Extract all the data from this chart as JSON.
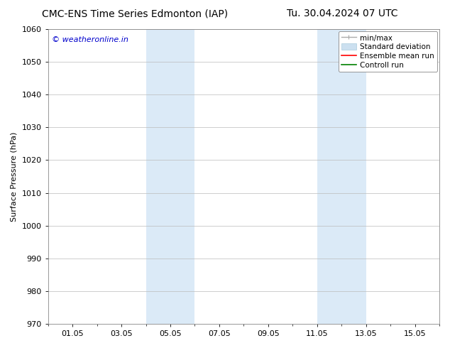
{
  "title_left": "CMC-ENS Time Series Edmonton (IAP)",
  "title_right": "Tu. 30.04.2024 07 UTC",
  "ylabel": "Surface Pressure (hPa)",
  "ylim": [
    970,
    1060
  ],
  "yticks": [
    970,
    980,
    990,
    1000,
    1010,
    1020,
    1030,
    1040,
    1050,
    1060
  ],
  "xtick_labels": [
    "01.05",
    "03.05",
    "05.05",
    "07.05",
    "09.05",
    "11.05",
    "13.05",
    "15.05"
  ],
  "xtick_positions": [
    1,
    3,
    5,
    7,
    9,
    11,
    13,
    15
  ],
  "xlim": [
    0,
    16
  ],
  "shaded_regions": [
    {
      "x_start": 4,
      "x_end": 6,
      "color": "#dbeaf7"
    },
    {
      "x_start": 11,
      "x_end": 13,
      "color": "#dbeaf7"
    }
  ],
  "legend_entries": [
    {
      "label": "min/max",
      "color": "#aaaaaa",
      "lw": 1.0
    },
    {
      "label": "Standard deviation",
      "color": "#cce0f0",
      "lw": 8
    },
    {
      "label": "Ensemble mean run",
      "color": "#ff0000",
      "lw": 1.2
    },
    {
      "label": "Controll run",
      "color": "#008000",
      "lw": 1.2
    }
  ],
  "watermark": "© weatheronline.in",
  "watermark_color": "#0000cc",
  "background_color": "#ffffff",
  "grid_color": "#bbbbbb",
  "title_fontsize": 10,
  "ylabel_fontsize": 8,
  "tick_fontsize": 8,
  "legend_fontsize": 7.5,
  "watermark_fontsize": 8
}
